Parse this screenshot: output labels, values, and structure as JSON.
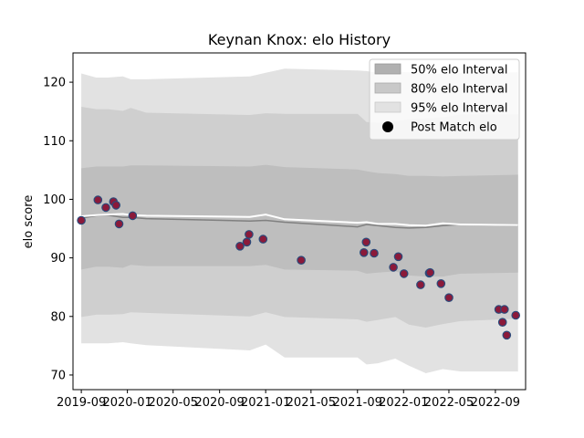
{
  "chart_data": {
    "type": "line",
    "title": "Keynan Knox: elo History",
    "xlabel": "",
    "ylabel": "elo score",
    "xlim": [
      "2019-08-10",
      "2022-11-20"
    ],
    "ylim": [
      67.5,
      125.0
    ],
    "x_ticks": [
      "2019-09",
      "2020-01",
      "2020-05",
      "2020-09",
      "2021-01",
      "2021-05",
      "2021-09",
      "2022-01",
      "2022-05",
      "2022-09"
    ],
    "x_tick_dates": [
      "2019-09-01",
      "2020-01-01",
      "2020-05-01",
      "2020-09-01",
      "2021-01-01",
      "2021-05-01",
      "2021-09-01",
      "2022-01-01",
      "2022-05-01",
      "2022-09-01"
    ],
    "y_ticks": [
      70,
      80,
      90,
      100,
      110,
      120
    ],
    "grid": false,
    "legend": {
      "position": "top-right",
      "entries": [
        "50% elo Interval",
        "80% elo Interval",
        "95% elo Interval",
        "Post Match elo"
      ]
    },
    "colors": {
      "band95": "#e2e2e2",
      "band80": "#cfcfcf",
      "band50": "#bebebe",
      "median_line": "#808080",
      "mean_line": "#ffffff",
      "point_fill": "#8b1a3a",
      "point_edge": "#2b4a7a"
    },
    "bands": {
      "dates": [
        "2019-09-01",
        "2019-10-10",
        "2019-11-10",
        "2019-12-20",
        "2020-01-10",
        "2020-02-20",
        "2020-11-20",
        "2021-01-01",
        "2021-02-20",
        "2021-09-01",
        "2021-09-25",
        "2021-10-25",
        "2021-12-10",
        "2022-01-15",
        "2022-03-01",
        "2022-04-15",
        "2022-06-01",
        "2022-10-31"
      ],
      "upper95": [
        121.5,
        120.8,
        120.8,
        121.0,
        120.5,
        120.5,
        121.0,
        121.6,
        122.3,
        122.0,
        121.9,
        121.6,
        121.8,
        121.7,
        121.5,
        121.5,
        121.6,
        121.7
      ],
      "upper80": [
        115.8,
        115.4,
        115.4,
        115.1,
        115.6,
        114.8,
        114.4,
        114.7,
        114.6,
        114.6,
        113.2,
        113.1,
        113.3,
        113.7,
        113.8,
        114.0,
        114.5,
        114.5
      ],
      "upper50": [
        105.3,
        105.6,
        105.6,
        105.6,
        105.8,
        105.8,
        105.6,
        105.9,
        105.5,
        105.1,
        104.8,
        104.5,
        104.3,
        104.0,
        104.0,
        103.9,
        104.0,
        104.2
      ],
      "lower50": [
        88.0,
        88.5,
        88.5,
        88.3,
        88.8,
        88.6,
        88.6,
        88.8,
        88.0,
        87.8,
        87.3,
        87.5,
        87.7,
        87.0,
        86.8,
        86.8,
        87.3,
        87.5
      ],
      "lower80": [
        79.9,
        80.3,
        80.3,
        80.4,
        80.7,
        80.6,
        80.0,
        80.7,
        79.9,
        79.5,
        79.1,
        79.4,
        79.9,
        78.6,
        78.1,
        78.7,
        79.2,
        79.6
      ],
      "lower95": [
        75.4,
        75.4,
        75.4,
        75.6,
        75.4,
        75.1,
        74.2,
        75.2,
        73.0,
        73.0,
        71.8,
        72.0,
        72.8,
        71.6,
        70.3,
        71.0,
        70.6,
        70.6
      ],
      "median": [
        96.8,
        97.2,
        97.3,
        96.9,
        96.9,
        96.7,
        96.3,
        96.4,
        96.1,
        95.3,
        95.7,
        95.5,
        95.2,
        95.1,
        95.2,
        95.5,
        95.7,
        95.5
      ],
      "mean": [
        97.1,
        97.3,
        97.4,
        97.5,
        97.3,
        97.2,
        97.0,
        97.4,
        96.6,
        96.0,
        96.1,
        95.8,
        95.8,
        95.6,
        95.5,
        95.9,
        95.7,
        95.6
      ]
    },
    "points": {
      "dates": [
        "2019-09-01",
        "2019-10-15",
        "2019-11-05",
        "2019-11-25",
        "2019-12-02",
        "2019-12-10",
        "2020-01-15",
        "2020-10-25",
        "2020-11-12",
        "2020-11-18",
        "2020-12-25",
        "2021-04-05",
        "2021-09-18",
        "2021-09-24",
        "2021-10-15",
        "2021-12-05",
        "2021-12-18",
        "2022-01-02",
        "2022-02-15",
        "2022-03-10",
        "2022-03-12",
        "2022-04-10",
        "2022-05-01",
        "2022-09-10",
        "2022-09-20",
        "2022-09-25",
        "2022-10-01",
        "2022-10-25"
      ],
      "values": [
        96.4,
        99.9,
        98.6,
        99.6,
        99.0,
        95.8,
        97.2,
        92.0,
        92.7,
        94.0,
        93.2,
        89.6,
        90.9,
        92.7,
        90.8,
        88.4,
        90.2,
        87.3,
        85.4,
        87.4,
        87.5,
        85.6,
        83.2,
        81.2,
        79.0,
        81.2,
        76.8,
        80.2
      ]
    }
  }
}
